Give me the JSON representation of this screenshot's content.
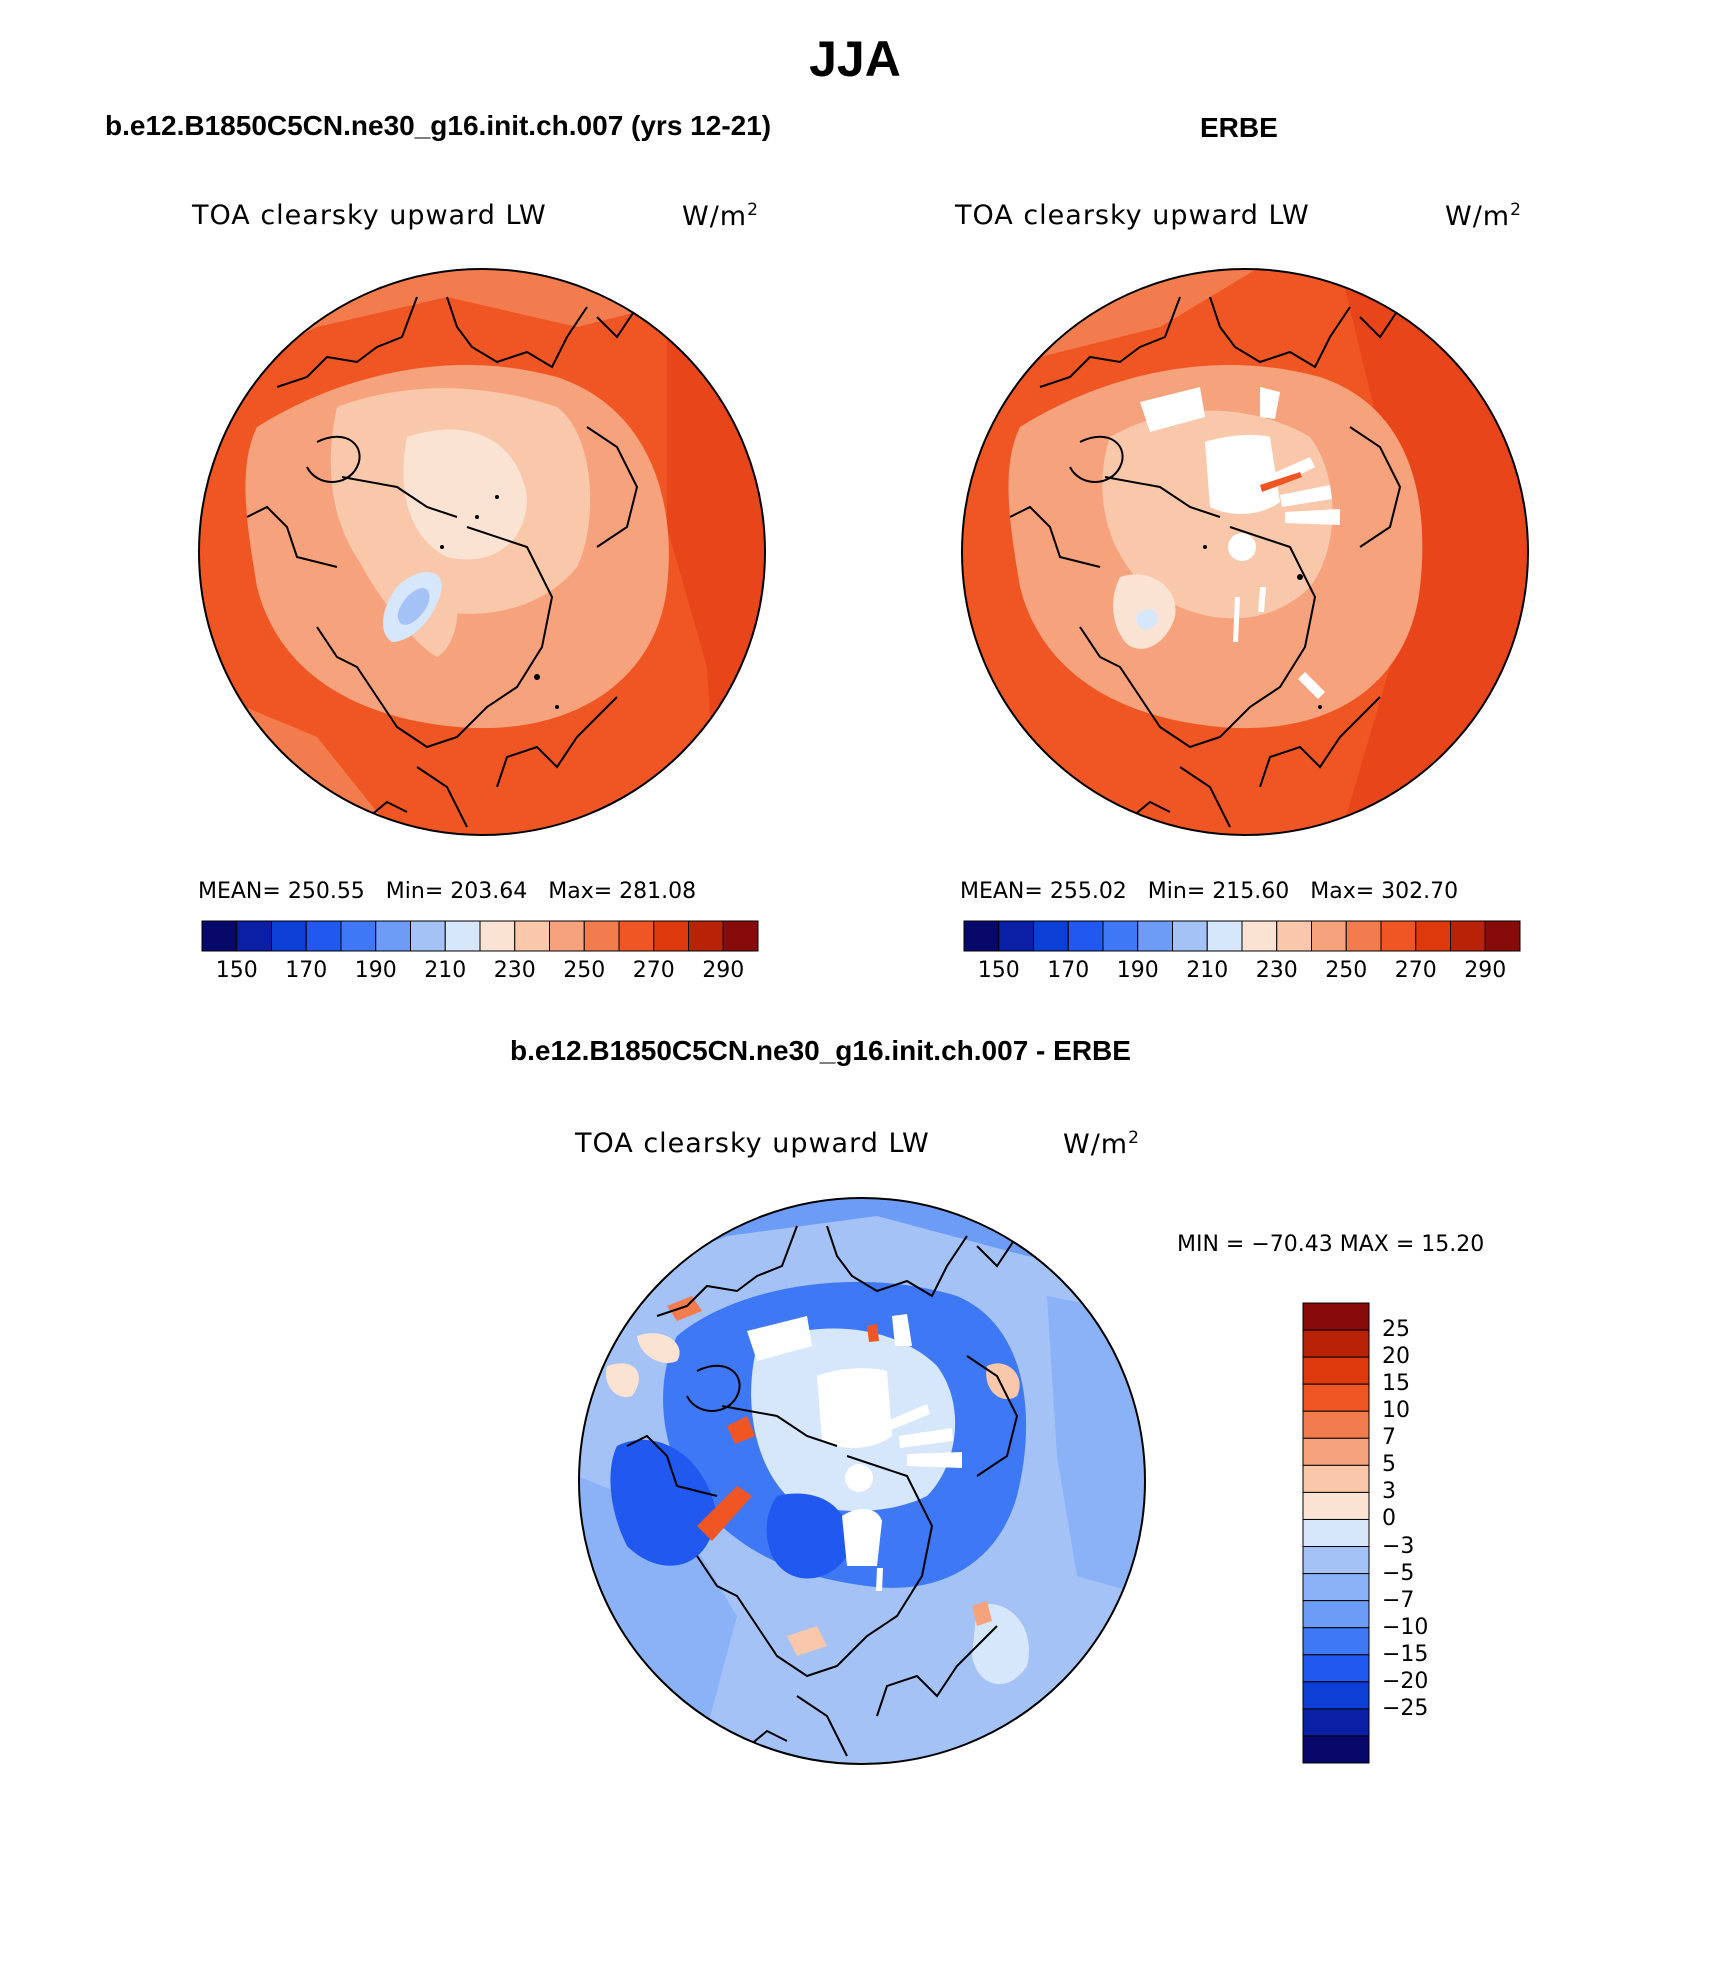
{
  "title": "JJA",
  "panels": [
    {
      "id": "model",
      "heading": "b.e12.B1850C5CN.ne30_g16.init.ch.007 (yrs 12-21)",
      "variable": "TOA clearsky upward LW",
      "units": "W/m",
      "units_sup": "2",
      "stats": {
        "mean_label": "MEAN=",
        "mean": "250.55",
        "min_label": "Min=",
        "min": "203.64",
        "max_label": "Max=",
        "max": "281.08"
      }
    },
    {
      "id": "obs",
      "heading": "ERBE",
      "variable": "TOA clearsky upward LW",
      "units": "W/m",
      "units_sup": "2",
      "stats": {
        "mean_label": "MEAN=",
        "mean": "255.02",
        "min_label": "Min=",
        "min": "215.60",
        "max_label": "Max=",
        "max": "302.70"
      }
    },
    {
      "id": "diff",
      "heading": "b.e12.B1850C5CN.ne30_g16.init.ch.007 - ERBE",
      "variable": "TOA clearsky upward LW",
      "units": "W/m",
      "units_sup": "2",
      "stats": {
        "text": "MIN = −70.43 MAX =  15.20"
      }
    }
  ],
  "colorbar_main": {
    "colors": [
      "#08086b",
      "#0b1fa6",
      "#0b3fd6",
      "#2058f0",
      "#3f78f5",
      "#6d9cf7",
      "#a4c2f6",
      "#d7e7fb",
      "#fbe3d3",
      "#f9c7aa",
      "#f6a27c",
      "#f37c4e",
      "#ef5624",
      "#de3a0d",
      "#b82308",
      "#870b0b"
    ],
    "tick_labels": [
      "150",
      "170",
      "190",
      "210",
      "230",
      "250",
      "270",
      "290"
    ]
  },
  "colorbar_diff": {
    "colors": [
      "#870b0b",
      "#b82308",
      "#de3a0d",
      "#ef5624",
      "#f37c4e",
      "#f6a27c",
      "#f9c7aa",
      "#fbe3d3",
      "#d7e7fb",
      "#a4c2f6",
      "#8bb2f6",
      "#6d9cf7",
      "#3f78f5",
      "#2058f0",
      "#0b3fd6",
      "#0b1fa6",
      "#08086b"
    ],
    "tick_labels": [
      "25",
      "20",
      "15",
      "10",
      "7",
      "5",
      "3",
      "0",
      "−3",
      "−5",
      "−7",
      "−10",
      "−15",
      "−20",
      "−25"
    ]
  }
}
